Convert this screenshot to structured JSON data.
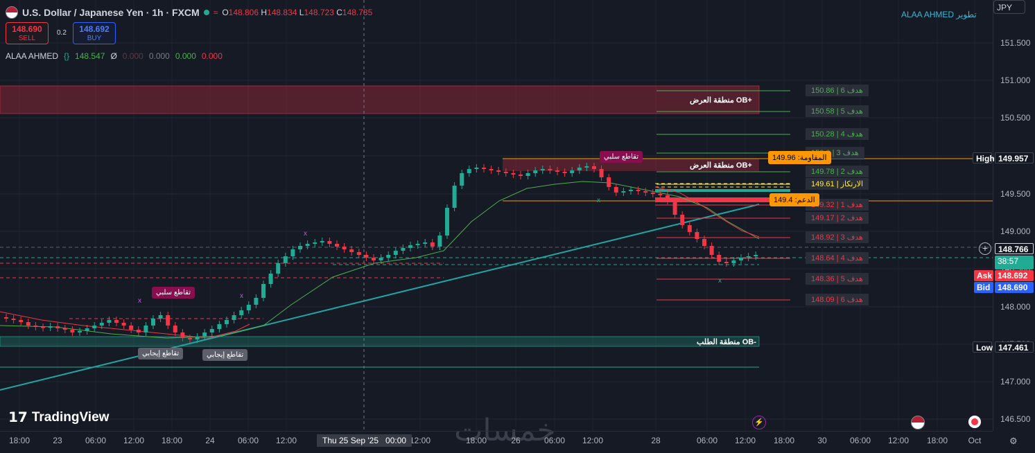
{
  "header": {
    "symbol": "U.S. Dollar / Japanese Yen · 1h · FXCM",
    "o_label": "O",
    "o_value": "148.806",
    "h_label": "H",
    "h_value": "148.834",
    "l_label": "L",
    "l_value": "148.723",
    "c_label": "C",
    "c_value": "148.785",
    "wave_icon": "≈"
  },
  "trade": {
    "sell_price": "148.690",
    "sell_label": "SELL",
    "spread": "0.2",
    "buy_price": "148.692",
    "buy_label": "BUY"
  },
  "indicator": {
    "name": "ALAA AHMED",
    "v1": "148.547",
    "sym": "Ø",
    "v2": "0.000",
    "v3": "0.000",
    "v4": "0.000",
    "v5": "0.000"
  },
  "author": "ALAA AHMED تطوير",
  "currency": "JPY",
  "y_axis": {
    "ticks": [
      "151.500",
      "151.000",
      "150.500",
      "150.000",
      "149.500",
      "149.000",
      "148.500",
      "148.000",
      "147.500",
      "147.000",
      "146.500"
    ],
    "high_label": "High",
    "high_value": "149.957",
    "current": "148.766",
    "countdown": "38:57",
    "ask_label": "Ask",
    "ask_value": "148.692",
    "bid_label": "Bid",
    "bid_value": "148.690",
    "low_label": "Low",
    "low_value": "147.461"
  },
  "x_axis": {
    "ticks": [
      "18:00",
      "23",
      "06:00",
      "12:00",
      "18:00",
      "24",
      "06:00",
      "12:00",
      "12:00",
      "18:00",
      "26",
      "06:00",
      "12:00",
      "28",
      "06:00",
      "12:00",
      "18:00",
      "30",
      "06:00",
      "12:00",
      "18:00",
      "Oct"
    ],
    "cursor_label": "Thu 25 Sep '25   00:00"
  },
  "zones": {
    "supply_top": "منطقة العرض OB+",
    "supply_mid": "منطقة العرض OB+",
    "demand": "منطقة الطلب OB-"
  },
  "targets_up": [
    {
      "text": "هدف  6 | 150.86",
      "color": "#4caf50"
    },
    {
      "text": "هدف  5 | 150.58",
      "color": "#4caf50"
    },
    {
      "text": "هدف  4 | 150.28",
      "color": "#4caf50"
    },
    {
      "text": "هدف  3 | 150.0",
      "color": "#4caf50"
    },
    {
      "text": "هدف  2 | 149.78",
      "color": "#4caf50"
    }
  ],
  "pivot": {
    "text": "الارتكاز | 149.61",
    "color": "#ffeb3b"
  },
  "targets_down": [
    {
      "text": "هدف  1 | 149.32",
      "color": "#f23645"
    },
    {
      "text": "هدف  2 | 149.17",
      "color": "#f23645"
    },
    {
      "text": "هدف  3 | 148.92",
      "color": "#f23645"
    },
    {
      "text": "هدف  4 | 148.64",
      "color": "#f23645"
    },
    {
      "text": "هدف  5 | 148.36",
      "color": "#f23645"
    },
    {
      "text": "هدف  6 | 148.09",
      "color": "#f23645"
    }
  ],
  "levels": {
    "resistance": "المقاومة: 149.96",
    "support": "الدعم: 149.4"
  },
  "signals": {
    "neg1": "تقاطع سلبي",
    "neg2": "تقاطع سلبي",
    "pos1": "تقاطع إيجابي",
    "pos2": "تقاطع إيجابي"
  },
  "brand": "TradingView",
  "watermark": "خمسات",
  "colors": {
    "up": "#22ab94",
    "down": "#f23645",
    "bg": "#161a25"
  }
}
